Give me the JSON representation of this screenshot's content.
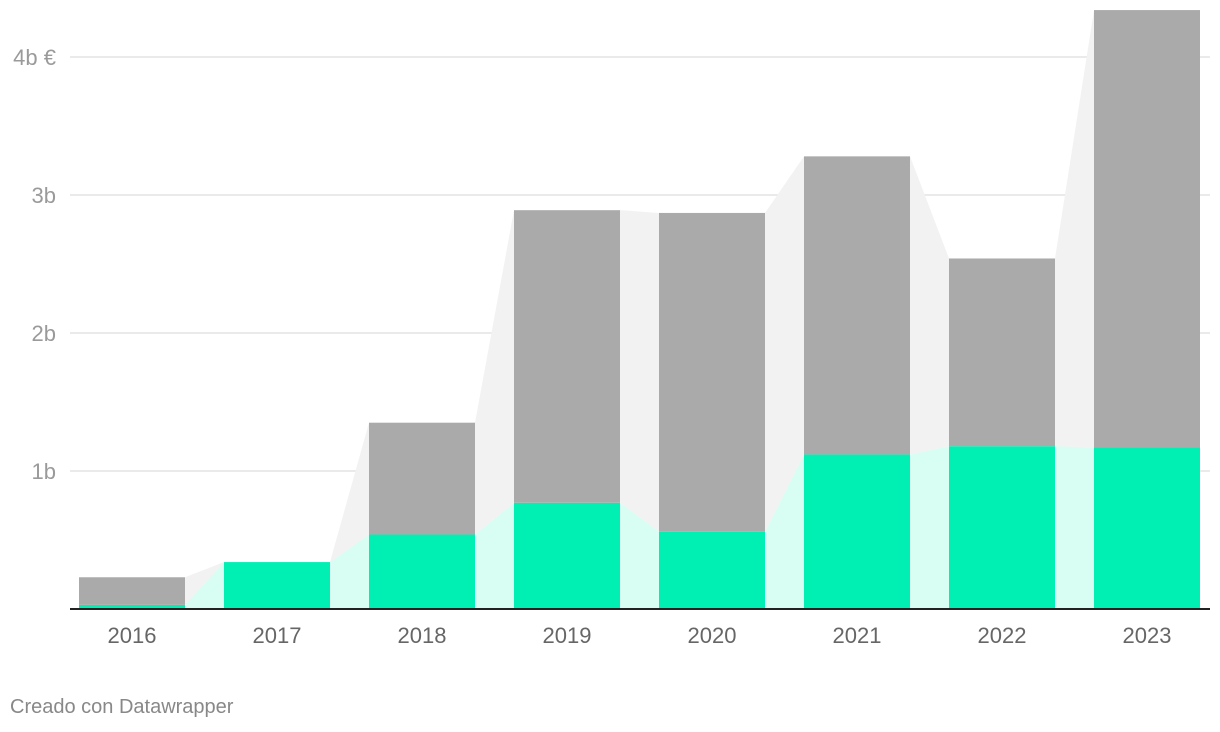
{
  "chart_data": {
    "type": "bar",
    "stacked": true,
    "categories": [
      "2016",
      "2017",
      "2018",
      "2019",
      "2020",
      "2021",
      "2022",
      "2023"
    ],
    "series": [
      {
        "values": [
          0.03,
          0.34,
          0.54,
          0.77,
          0.56,
          1.12,
          1.18,
          1.17
        ],
        "color": "#00f0b4",
        "area_color": "#d8fdf2"
      },
      {
        "values": [
          0.2,
          0.0,
          0.81,
          2.12,
          2.31,
          2.16,
          1.36,
          3.17
        ],
        "color": "#aaaaaa",
        "area_color": "#f2f2f2"
      }
    ],
    "y_ticks": [
      {
        "value": 1,
        "label": "1b"
      },
      {
        "value": 2,
        "label": "2b"
      },
      {
        "value": 3,
        "label": "3b"
      },
      {
        "value": 4,
        "label": "4b €"
      }
    ],
    "ylim": [
      0,
      4.4
    ],
    "grid": true,
    "title": "",
    "xlabel": "",
    "ylabel": ""
  },
  "footer": {
    "credit": "Creado con Datawrapper"
  }
}
